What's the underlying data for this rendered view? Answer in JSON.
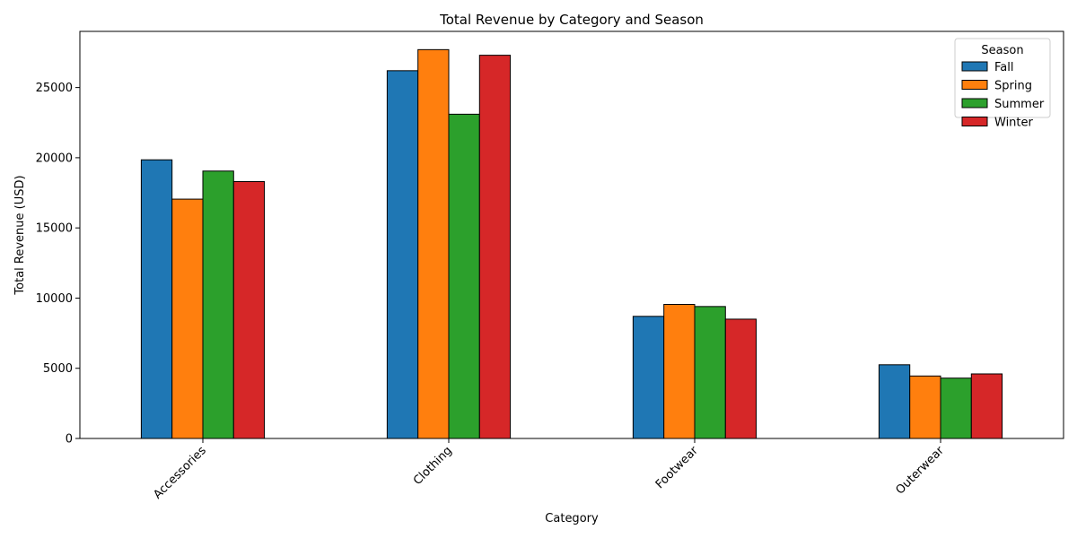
{
  "chart_data": {
    "type": "bar",
    "title": "Total Revenue by Category and Season",
    "xlabel": "Category",
    "ylabel": "Total Revenue (USD)",
    "categories": [
      "Accessories",
      "Clothing",
      "Footwear",
      "Outerwear"
    ],
    "series": [
      {
        "name": "Fall",
        "color": "#1f77b4",
        "values": [
          19850,
          26200,
          8700,
          5250
        ]
      },
      {
        "name": "Spring",
        "color": "#ff7f0e",
        "values": [
          17050,
          27700,
          9550,
          4450
        ]
      },
      {
        "name": "Summer",
        "color": "#2ca02c",
        "values": [
          19050,
          23100,
          9400,
          4300
        ]
      },
      {
        "name": "Winter",
        "color": "#d62728",
        "values": [
          18300,
          27300,
          8500,
          4600
        ]
      }
    ],
    "ylim": [
      0,
      29000
    ],
    "yticks": [
      0,
      5000,
      10000,
      15000,
      20000,
      25000
    ],
    "grid": false,
    "legend": {
      "title": "Season",
      "placement": "top-right"
    },
    "bar_edge_color": "#000000"
  }
}
